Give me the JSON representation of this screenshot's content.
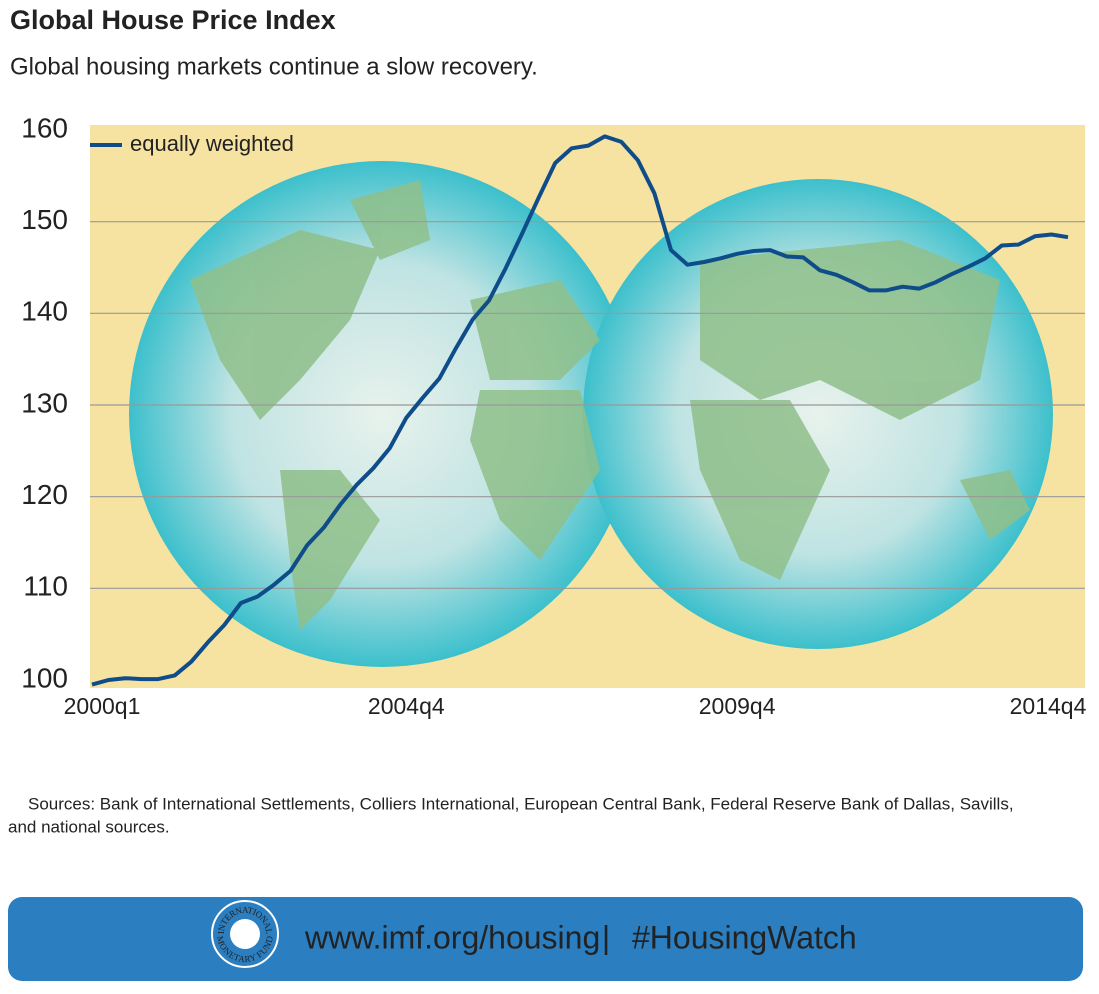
{
  "chart_data": {
    "type": "line",
    "title": "Global House Price Index",
    "subtitle": "Global housing markets continue a slow recovery.",
    "categories": [
      "2000q1",
      null,
      null,
      null,
      null,
      null,
      null,
      null,
      null,
      null,
      null,
      null,
      null,
      null,
      null,
      null,
      null,
      null,
      null,
      "2004q4",
      null,
      null,
      null,
      null,
      null,
      null,
      null,
      null,
      null,
      null,
      null,
      null,
      null,
      null,
      null,
      null,
      null,
      null,
      null,
      "2009q4",
      null,
      null,
      null,
      null,
      null,
      null,
      null,
      null,
      null,
      null,
      null,
      null,
      null,
      null,
      null,
      null,
      null,
      null,
      null,
      "2014q4"
    ],
    "series": [
      {
        "name": "equally weighted",
        "color": "#0f4c8a",
        "values": [
          99.5,
          100.0,
          100.2,
          100.1,
          100.1,
          100.5,
          102.0,
          104.1,
          106.0,
          108.4,
          109.1,
          110.4,
          111.9,
          114.7,
          116.6,
          119.1,
          121.3,
          123.1,
          125.3,
          128.6,
          130.8,
          132.9,
          136.2,
          139.3,
          141.4,
          144.9,
          148.7,
          152.6,
          156.4,
          158.0,
          158.3,
          159.3,
          158.7,
          156.7,
          153.1,
          146.9,
          145.3,
          145.6,
          146.0,
          146.5,
          146.8,
          146.9,
          146.2,
          146.1,
          144.7,
          144.2,
          143.4,
          142.5,
          142.5,
          142.9,
          142.7,
          143.4,
          144.3,
          145.1,
          146.0,
          147.4,
          147.5,
          148.4,
          148.6,
          148.3
        ]
      }
    ],
    "ylim": [
      100,
      160
    ],
    "yticks": [
      100,
      110,
      120,
      130,
      140,
      150,
      160
    ],
    "grid": true,
    "legend": "top-left",
    "sources": [
      "Sources: Bank of International Settlements, Colliers International, European Central Bank, Federal Reserve Bank of Dallas, Savills,",
      "and national sources."
    ]
  },
  "footer": {
    "logo_top": "INTERNATIONAL",
    "logo_bottom": "MONETARY FUND",
    "url": "www.imf.org/housing",
    "separator": "|",
    "hashtag": "#HousingWatch"
  }
}
